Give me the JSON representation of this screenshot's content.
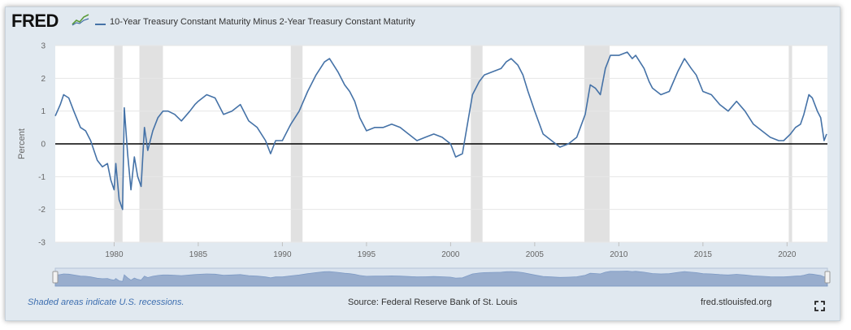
{
  "header": {
    "logo_text": "FRED",
    "legend_label": "10-Year Treasury Constant Maturity Minus 2-Year Treasury Constant Maturity"
  },
  "footer": {
    "note": "Shaded areas indicate U.S. recessions.",
    "source": "Source: Federal Reserve Bank of St. Louis",
    "url": "fred.stlouisfed.org"
  },
  "colors": {
    "series": "#4572a7",
    "recession": "#e1e1e1",
    "plot_bg": "#ffffff",
    "navigator_fill": "#8ea4c8"
  },
  "chart_data": {
    "type": "line",
    "title": "",
    "xlabel": "",
    "ylabel": "Percent",
    "xlim": [
      1976.5,
      2022.4
    ],
    "ylim": [
      -3,
      3
    ],
    "x_ticks": [
      1980,
      1985,
      1990,
      1995,
      2000,
      2005,
      2010,
      2015,
      2020
    ],
    "x_tick_labels": [
      "1980",
      "1985",
      "1990",
      "1995",
      "2000",
      "2005",
      "2010",
      "2015",
      "2020"
    ],
    "y_ticks": [
      -3,
      -2,
      -1,
      0,
      1,
      2,
      3
    ],
    "y_tick_labels": [
      "-3",
      "-2",
      "-1",
      "0",
      "1",
      "2",
      "3"
    ],
    "recessions": [
      [
        1980.0,
        1980.5
      ],
      [
        1981.5,
        1982.9
      ],
      [
        1990.5,
        1991.2
      ],
      [
        2001.2,
        2001.9
      ],
      [
        2007.95,
        2009.45
      ],
      [
        2020.1,
        2020.3
      ]
    ],
    "zero_line": true,
    "series": [
      {
        "name": "10-Year Treasury Constant Maturity Minus 2-Year Treasury Constant Maturity",
        "x": [
          1976.5,
          1976.8,
          1977.0,
          1977.3,
          1977.6,
          1978.0,
          1978.3,
          1978.6,
          1979.0,
          1979.3,
          1979.6,
          1979.8,
          1980.0,
          1980.1,
          1980.3,
          1980.5,
          1980.6,
          1980.8,
          1981.0,
          1981.2,
          1981.4,
          1981.6,
          1981.8,
          1982.0,
          1982.3,
          1982.6,
          1982.9,
          1983.2,
          1983.6,
          1984.0,
          1984.5,
          1984.8,
          1985.0,
          1985.5,
          1986.0,
          1986.5,
          1987.0,
          1987.5,
          1988.0,
          1988.5,
          1989.0,
          1989.3,
          1989.6,
          1990.0,
          1990.5,
          1991.0,
          1991.5,
          1992.0,
          1992.5,
          1992.8,
          1993.3,
          1993.7,
          1994.0,
          1994.3,
          1994.6,
          1995.0,
          1995.5,
          1996.0,
          1996.5,
          1997.0,
          1997.5,
          1998.0,
          1998.5,
          1999.0,
          1999.5,
          2000.0,
          2000.3,
          2000.7,
          2001.0,
          2001.3,
          2001.7,
          2002.0,
          2002.5,
          2003.0,
          2003.3,
          2003.6,
          2004.0,
          2004.3,
          2004.6,
          2005.0,
          2005.5,
          2006.0,
          2006.5,
          2007.0,
          2007.5,
          2008.0,
          2008.3,
          2008.6,
          2008.9,
          2009.2,
          2009.5,
          2010.0,
          2010.5,
          2010.8,
          2011.0,
          2011.5,
          2011.8,
          2012.0,
          2012.5,
          2013.0,
          2013.5,
          2013.9,
          2014.3,
          2014.6,
          2015.0,
          2015.5,
          2016.0,
          2016.5,
          2017.0,
          2017.5,
          2018.0,
          2018.5,
          2019.0,
          2019.5,
          2019.8,
          2020.2,
          2020.5,
          2020.8,
          2021.0,
          2021.3,
          2021.5,
          2021.8,
          2022.0,
          2022.2,
          2022.35
        ],
        "values": [
          0.85,
          1.2,
          1.5,
          1.4,
          1.0,
          0.5,
          0.4,
          0.1,
          -0.5,
          -0.7,
          -0.6,
          -1.1,
          -1.4,
          -0.6,
          -1.7,
          -2.0,
          1.1,
          -0.3,
          -1.4,
          -0.4,
          -1.0,
          -1.3,
          0.5,
          -0.2,
          0.4,
          0.8,
          1.0,
          1.0,
          0.9,
          0.7,
          1.0,
          1.2,
          1.3,
          1.5,
          1.4,
          0.9,
          1.0,
          1.2,
          0.7,
          0.5,
          0.1,
          -0.3,
          0.1,
          0.1,
          0.6,
          1.0,
          1.6,
          2.1,
          2.5,
          2.6,
          2.2,
          1.8,
          1.6,
          1.3,
          0.8,
          0.4,
          0.5,
          0.5,
          0.6,
          0.5,
          0.3,
          0.1,
          0.2,
          0.3,
          0.2,
          0.0,
          -0.4,
          -0.3,
          0.6,
          1.5,
          1.9,
          2.1,
          2.2,
          2.3,
          2.5,
          2.6,
          2.4,
          2.1,
          1.6,
          1.0,
          0.3,
          0.1,
          -0.1,
          0.0,
          0.2,
          0.9,
          1.8,
          1.7,
          1.5,
          2.3,
          2.7,
          2.7,
          2.8,
          2.6,
          2.7,
          2.3,
          1.9,
          1.7,
          1.5,
          1.6,
          2.2,
          2.6,
          2.3,
          2.1,
          1.6,
          1.5,
          1.2,
          1.0,
          1.3,
          1.0,
          0.6,
          0.4,
          0.2,
          0.1,
          0.1,
          0.3,
          0.5,
          0.6,
          0.9,
          1.5,
          1.4,
          1.0,
          0.8,
          0.1,
          0.3
        ]
      }
    ]
  }
}
